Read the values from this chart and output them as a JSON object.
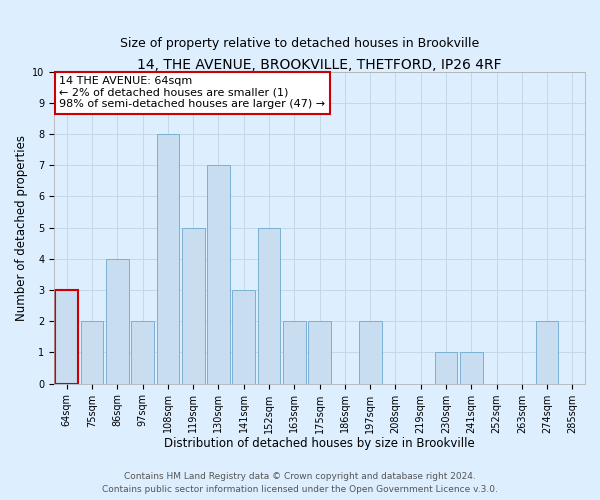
{
  "title": "14, THE AVENUE, BROOKVILLE, THETFORD, IP26 4RF",
  "subtitle": "Size of property relative to detached houses in Brookville",
  "xlabel": "Distribution of detached houses by size in Brookville",
  "ylabel": "Number of detached properties",
  "categories": [
    "64sqm",
    "75sqm",
    "86sqm",
    "97sqm",
    "108sqm",
    "119sqm",
    "130sqm",
    "141sqm",
    "152sqm",
    "163sqm",
    "175sqm",
    "186sqm",
    "197sqm",
    "208sqm",
    "219sqm",
    "230sqm",
    "241sqm",
    "252sqm",
    "263sqm",
    "274sqm",
    "285sqm"
  ],
  "values": [
    3,
    2,
    4,
    2,
    8,
    5,
    7,
    3,
    5,
    2,
    2,
    0,
    2,
    0,
    0,
    1,
    1,
    0,
    0,
    2,
    0
  ],
  "highlight_index": 0,
  "bar_color": "#c8ddf0",
  "bar_edge_color": "#7ab0d4",
  "highlight_bar_edge_color": "#cc0000",
  "annotation_text": "14 THE AVENUE: 64sqm\n← 2% of detached houses are smaller (1)\n98% of semi-detached houses are larger (47) →",
  "annotation_box_edge_color": "#cc0000",
  "annotation_box_face_color": "#ffffff",
  "ylim": [
    0,
    10
  ],
  "yticks": [
    0,
    1,
    2,
    3,
    4,
    5,
    6,
    7,
    8,
    9,
    10
  ],
  "grid_color": "#c5d8e8",
  "background_color": "#ddeeff",
  "footer_line1": "Contains HM Land Registry data © Crown copyright and database right 2024.",
  "footer_line2": "Contains public sector information licensed under the Open Government Licence v.3.0.",
  "title_fontsize": 10,
  "subtitle_fontsize": 9,
  "xlabel_fontsize": 8.5,
  "ylabel_fontsize": 8.5,
  "tick_fontsize": 7,
  "annotation_fontsize": 8,
  "footer_fontsize": 6.5
}
